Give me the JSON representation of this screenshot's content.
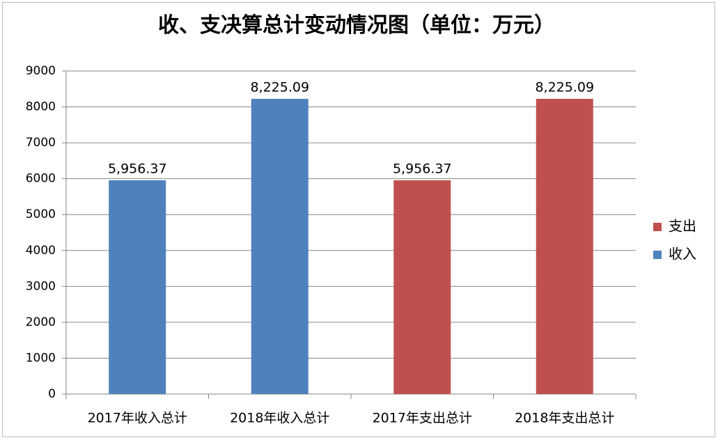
{
  "chart_data": {
    "type": "bar",
    "title": "收、支决算总计变动情况图（单位：万元）",
    "categories": [
      "2017年收入总计",
      "2018年收入总计",
      "2017年支出总计",
      "2018年支出总计"
    ],
    "series": [
      {
        "name": "支出",
        "color": "#c0504d",
        "values": [
          null,
          null,
          5956.37,
          8225.09
        ],
        "value_labels": [
          null,
          null,
          "5,956.37",
          "8,225.09"
        ]
      },
      {
        "name": "收入",
        "color": "#4f81bd",
        "values": [
          5956.37,
          8225.09,
          null,
          null
        ],
        "value_labels": [
          "5,956.37",
          "8,225.09",
          null,
          null
        ]
      }
    ],
    "ylim": [
      0,
      9000
    ],
    "yticks": [
      0,
      1000,
      2000,
      3000,
      4000,
      5000,
      6000,
      7000,
      8000,
      9000
    ],
    "grid": true,
    "legend": "right"
  }
}
